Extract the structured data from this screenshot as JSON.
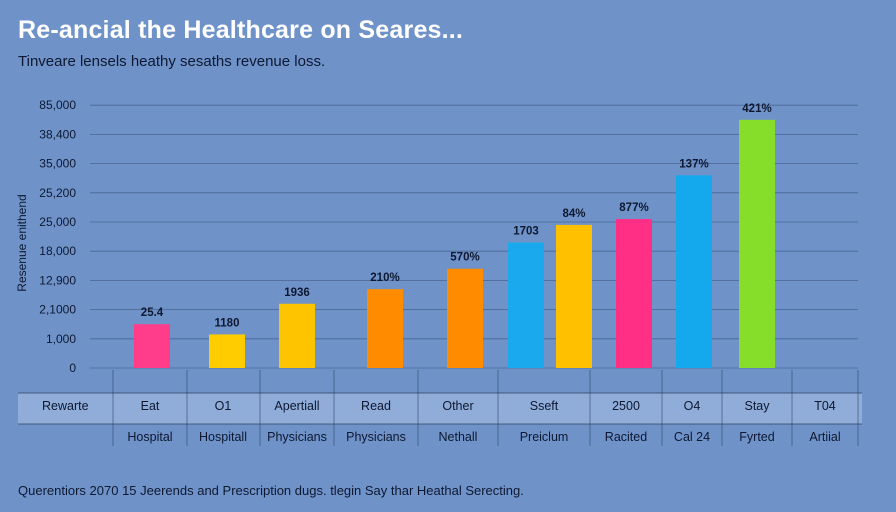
{
  "title": "Re-ancial the Healthcare on Seares...",
  "subtitle": "Tinveare lensels heathy sesaths revenue loss.",
  "footer": "Querentiors 2070 15 Jeerends and Prescription dugs. tlegin Say thar Heathal Serecting.",
  "chart_data": {
    "type": "bar",
    "ylabel": "Resenue enithend",
    "y_tick_labels": [
      "0",
      "1,000",
      "2,1000",
      "12,900",
      "18,000",
      "25,000",
      "25,200",
      "35,000",
      "38,400",
      "85,000"
    ],
    "ylim": [
      0,
      9
    ],
    "grid": true,
    "categories": [
      "Eat",
      "O1",
      "Apertiall",
      "Read",
      "Other",
      "Sseft",
      "",
      "2500",
      "O4",
      "Stay"
    ],
    "categories_row2": [
      "Hospital",
      "Hospitall",
      "Physicians",
      "Physicians",
      "Nethall",
      "Preiclum",
      "",
      "Racited",
      "Cal 24",
      "Fyrted"
    ],
    "table_header": "Rewarte",
    "table_last_col": [
      "T04",
      "Artiial"
    ],
    "values": [
      1.5,
      1.15,
      2.2,
      2.7,
      3.4,
      4.3,
      4.9,
      5.1,
      6.6,
      8.5
    ],
    "data_labels": [
      "25.4",
      "1180",
      "1936",
      "210%",
      "570%",
      "1703",
      "84%",
      "877%",
      "137%",
      "421%"
    ],
    "colors": [
      "#ff3d8b",
      "#ffcc00",
      "#ffc400",
      "#ff8c00",
      "#ff8c00",
      "#1aa9ec",
      "#ffc000",
      "#ff2f86",
      "#14a9ec",
      "#86dd2a"
    ]
  }
}
